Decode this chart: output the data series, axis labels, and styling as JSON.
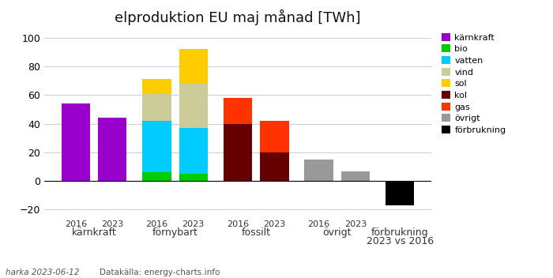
{
  "title": "elproduktion EU maj månad [TWh]",
  "footnote_left": "harka 2023-06-12",
  "footnote_right": "Datakälla: energy-charts.info",
  "ylim": [
    -25,
    105
  ],
  "yticks": [
    -20,
    0,
    20,
    40,
    60,
    80,
    100
  ],
  "groups": [
    {
      "label": "kärnkraft",
      "bars": [
        {
          "year": "2016",
          "segments": [
            {
              "color": "#9900cc",
              "value": 54
            }
          ]
        },
        {
          "year": "2023",
          "segments": [
            {
              "color": "#9900cc",
              "value": 44
            }
          ]
        }
      ]
    },
    {
      "label": "förnybart",
      "bars": [
        {
          "year": "2016",
          "segments": [
            {
              "color": "#00cc00",
              "value": 6
            },
            {
              "color": "#00ccff",
              "value": 36
            },
            {
              "color": "#cccc99",
              "value": 19
            },
            {
              "color": "#ffcc00",
              "value": 10
            }
          ]
        },
        {
          "year": "2023",
          "segments": [
            {
              "color": "#00cc00",
              "value": 5
            },
            {
              "color": "#00ccff",
              "value": 32
            },
            {
              "color": "#cccc99",
              "value": 31
            },
            {
              "color": "#ffcc00",
              "value": 24
            }
          ]
        }
      ]
    },
    {
      "label": "fossilt",
      "bars": [
        {
          "year": "2016",
          "segments": [
            {
              "color": "#660000",
              "value": 40
            },
            {
              "color": "#ff3300",
              "value": 18
            }
          ]
        },
        {
          "year": "2023",
          "segments": [
            {
              "color": "#660000",
              "value": 20
            },
            {
              "color": "#ff3300",
              "value": 22
            }
          ]
        }
      ]
    },
    {
      "label": "övrigt",
      "bars": [
        {
          "year": "2016",
          "segments": [
            {
              "color": "#999999",
              "value": 15
            }
          ]
        },
        {
          "year": "2023",
          "segments": [
            {
              "color": "#999999",
              "value": 7
            }
          ]
        }
      ]
    },
    {
      "label": "förbrukning\n2023 vs 2016",
      "bars": [
        {
          "year": "förbrukning",
          "segments": [
            {
              "color": "#000000",
              "value": -17
            }
          ]
        }
      ]
    }
  ],
  "legend_items": [
    {
      "label": "kärnkraft",
      "color": "#9900cc"
    },
    {
      "label": "bio",
      "color": "#00cc00"
    },
    {
      "label": "vatten",
      "color": "#00ccff"
    },
    {
      "label": "vind",
      "color": "#cccc99"
    },
    {
      "label": "sol",
      "color": "#ffcc00"
    },
    {
      "label": "kol",
      "color": "#660000"
    },
    {
      "label": "gas",
      "color": "#ff3300"
    },
    {
      "label": "övrigt",
      "color": "#999999"
    },
    {
      "label": "förbrukning",
      "color": "#000000"
    }
  ],
  "bar_width": 0.55,
  "background_color": "#ffffff"
}
